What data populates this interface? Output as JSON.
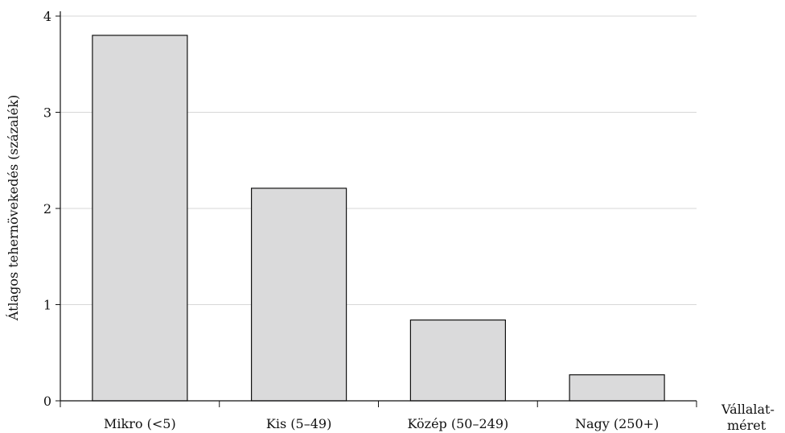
{
  "chart_data": {
    "type": "bar",
    "title": "",
    "xlabel_lines": [
      "Vállalat-",
      "méret"
    ],
    "ylabel": "Átlagos tehernövekedés (százalék)",
    "categories": [
      "Mikro (<5)",
      "Kis (5–49)",
      "Közép (50–249)",
      "Nagy (250+)"
    ],
    "values": [
      3.8,
      2.21,
      0.84,
      0.27
    ],
    "ylim": [
      0,
      4
    ],
    "yticks": [
      "0",
      "1",
      "2",
      "3",
      "4"
    ],
    "grid": true,
    "legend": "none",
    "colors": {
      "bar_fill": "#dadadb",
      "bar_stroke": "#111111",
      "grid": "#d7d7d7",
      "axis": "#111111",
      "text": "#111111"
    }
  }
}
